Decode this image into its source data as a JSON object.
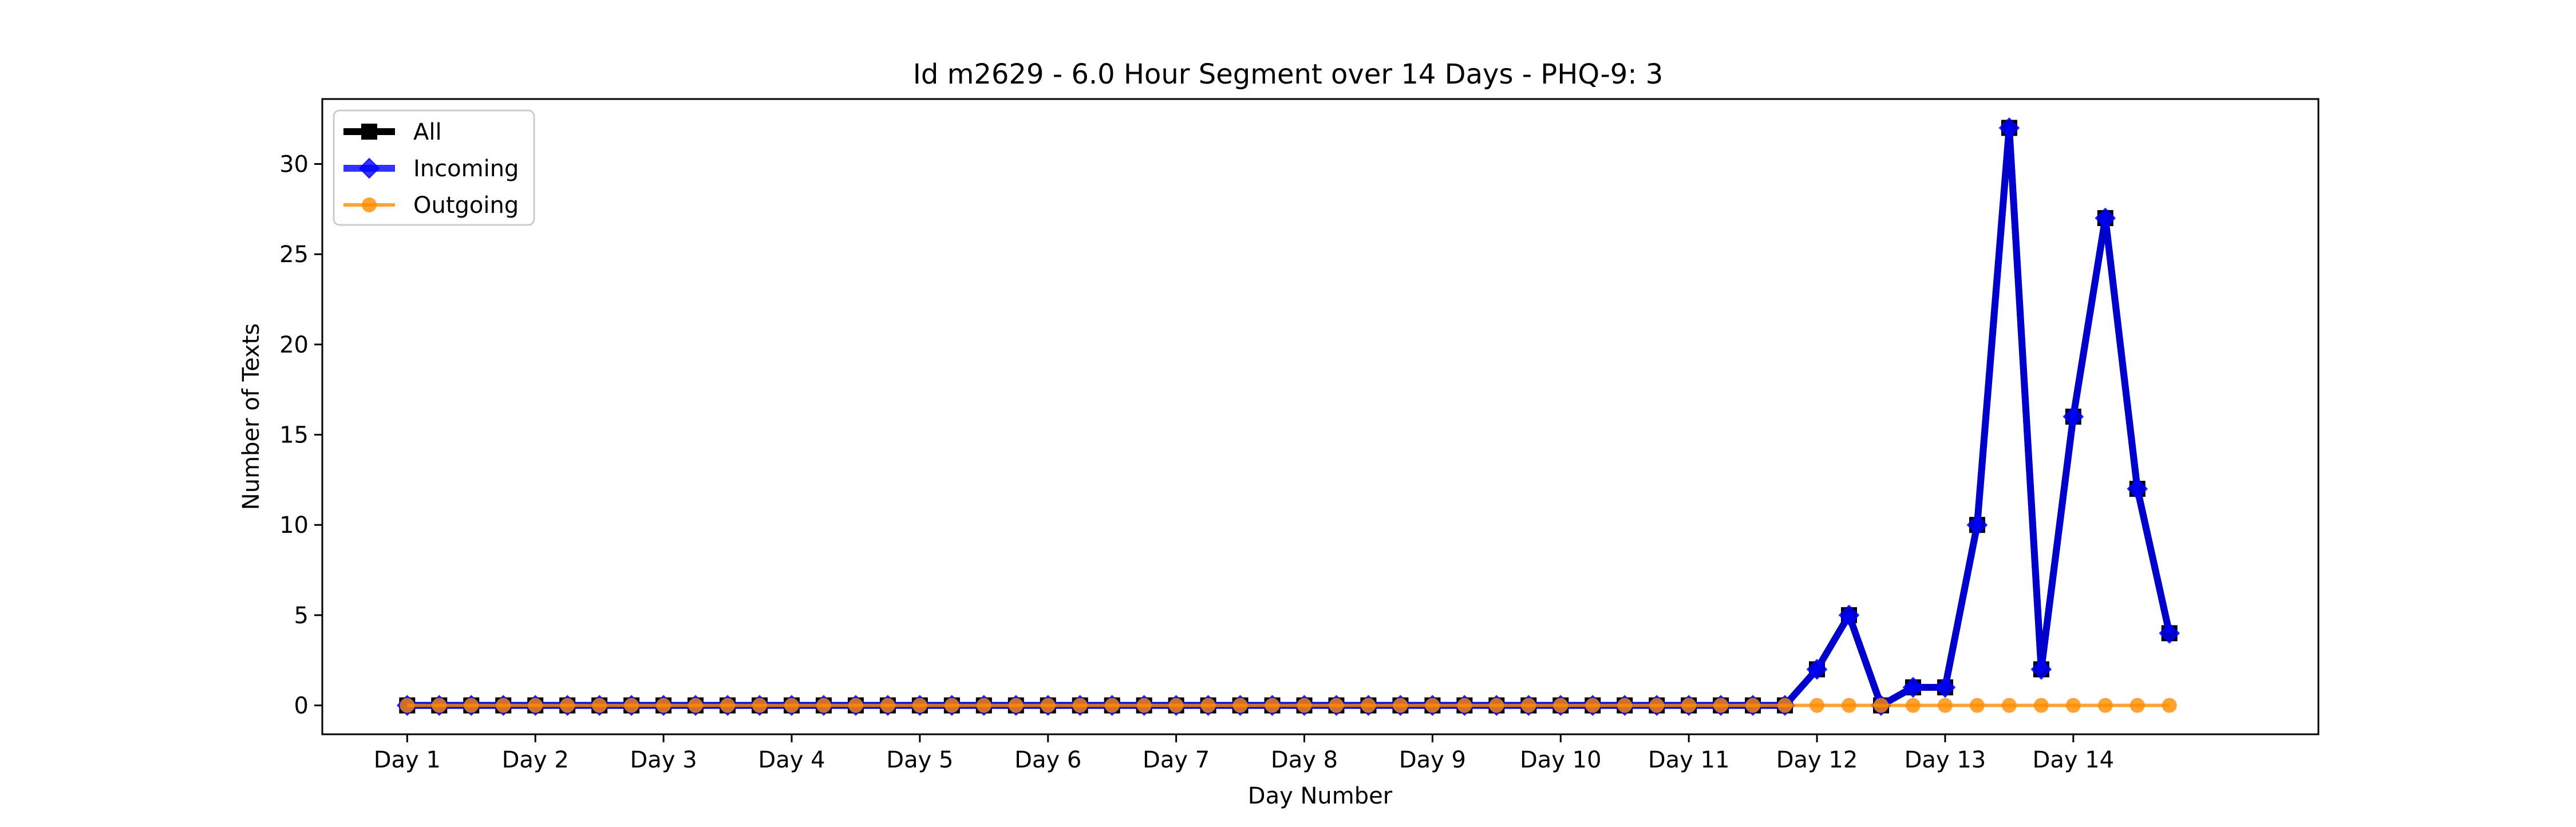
{
  "chart_data": {
    "type": "line",
    "title": "Id m2629 - 6.0 Hour Segment over 14 Days - PHQ-9: 3",
    "xlabel": "Day Number",
    "ylabel": "Number of Texts",
    "xlim": [
      -0.6625,
      14.9125
    ],
    "ylim": [
      -1.6,
      33.6
    ],
    "xticks": [
      0,
      1,
      2,
      3,
      4,
      5,
      6,
      7,
      8,
      9,
      10,
      11,
      12,
      13
    ],
    "xtick_labels": [
      "Day 1",
      "Day 2",
      "Day 3",
      "Day 4",
      "Day 5",
      "Day 6",
      "Day 7",
      "Day 8",
      "Day 9",
      "Day 10",
      "Day 11",
      "Day 12",
      "Day 13",
      "Day 14"
    ],
    "yticks": [
      0,
      5,
      10,
      15,
      20,
      25,
      30
    ],
    "grid": false,
    "legend_position": "top-left",
    "x": [
      0,
      0.25,
      0.5,
      0.75,
      1,
      1.25,
      1.5,
      1.75,
      2,
      2.25,
      2.5,
      2.75,
      3,
      3.25,
      3.5,
      3.75,
      4,
      4.25,
      4.5,
      4.75,
      5,
      5.25,
      5.5,
      5.75,
      6,
      6.25,
      6.5,
      6.75,
      7,
      7.25,
      7.5,
      7.75,
      8,
      8.25,
      8.5,
      8.75,
      9,
      9.25,
      9.5,
      9.75,
      10,
      10.25,
      10.5,
      10.75,
      11,
      11.25,
      11.5,
      11.75,
      12,
      12.25,
      12.5,
      12.75,
      13,
      13.25,
      13.5,
      13.75
    ],
    "series": [
      {
        "name": "All",
        "color": "#000000",
        "marker": "square",
        "values": [
          0,
          0,
          0,
          0,
          0,
          0,
          0,
          0,
          0,
          0,
          0,
          0,
          0,
          0,
          0,
          0,
          0,
          0,
          0,
          0,
          0,
          0,
          0,
          0,
          0,
          0,
          0,
          0,
          0,
          0,
          0,
          0,
          0,
          0,
          0,
          0,
          0,
          0,
          0,
          0,
          0,
          0,
          0,
          0,
          2,
          5,
          0,
          1,
          1,
          10,
          32,
          2,
          16,
          27,
          12,
          4
        ]
      },
      {
        "name": "Incoming",
        "color": "#0000ff",
        "marker": "diamond",
        "values": [
          0,
          0,
          0,
          0,
          0,
          0,
          0,
          0,
          0,
          0,
          0,
          0,
          0,
          0,
          0,
          0,
          0,
          0,
          0,
          0,
          0,
          0,
          0,
          0,
          0,
          0,
          0,
          0,
          0,
          0,
          0,
          0,
          0,
          0,
          0,
          0,
          0,
          0,
          0,
          0,
          0,
          0,
          0,
          0,
          2,
          5,
          0,
          1,
          1,
          10,
          32,
          2,
          16,
          27,
          12,
          4
        ]
      },
      {
        "name": "Outgoing",
        "color": "#ff8c00",
        "marker": "circle",
        "values": [
          0,
          0,
          0,
          0,
          0,
          0,
          0,
          0,
          0,
          0,
          0,
          0,
          0,
          0,
          0,
          0,
          0,
          0,
          0,
          0,
          0,
          0,
          0,
          0,
          0,
          0,
          0,
          0,
          0,
          0,
          0,
          0,
          0,
          0,
          0,
          0,
          0,
          0,
          0,
          0,
          0,
          0,
          0,
          0,
          0,
          0,
          0,
          0,
          0,
          0,
          0,
          0,
          0,
          0,
          0,
          0
        ]
      }
    ]
  }
}
